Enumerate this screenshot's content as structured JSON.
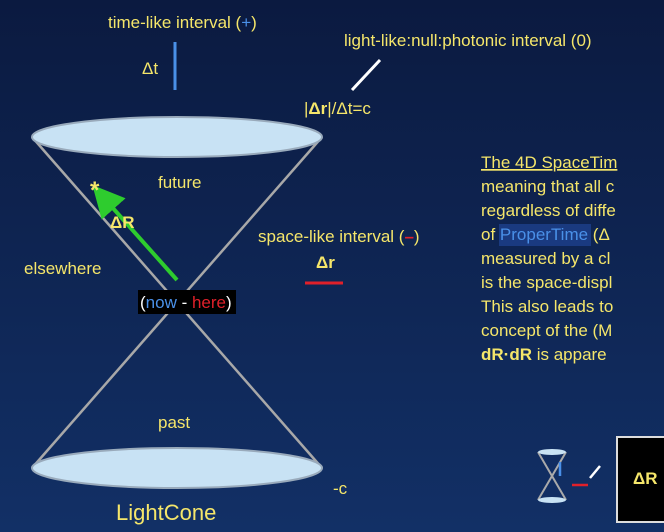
{
  "labels": {
    "timelike_prefix": "time-like interval (",
    "timelike_sign": "+",
    "timelike_suffix": ")",
    "dt": "Δt",
    "lightlike": "light-like:null:photonic interval (0)",
    "slope_bold": "Δr",
    "slope_rest": "|/Δt=c",
    "slope_open": "|",
    "future": "future",
    "star": "*",
    "dR": "ΔR",
    "elsewhere": "elsewhere",
    "spacelike_prefix": "space-like interval (",
    "spacelike_sign": "–",
    "spacelike_suffix": ")",
    "dr": "Δr",
    "now_open": "(",
    "now": "now",
    "dash": " - ",
    "here": "here",
    "now_close": ")",
    "past": "past",
    "minus_c": "-c",
    "title": "LightCone",
    "box_label": "ΔR"
  },
  "paragraph": {
    "heading": "The 4D SpaceTim",
    "lines": [
      "meaning that all c",
      "regardless of diffe"
    ],
    "proper_prefix": "of ",
    "proper": "ProperTime",
    "proper_suffix": " (Δ",
    "lines2": [
      "measured by a cl",
      "is the space-displ",
      "This also leads to",
      "concept of the (M"
    ],
    "last_bold": "dR·dR",
    "last_rest": " is appare"
  }
}
